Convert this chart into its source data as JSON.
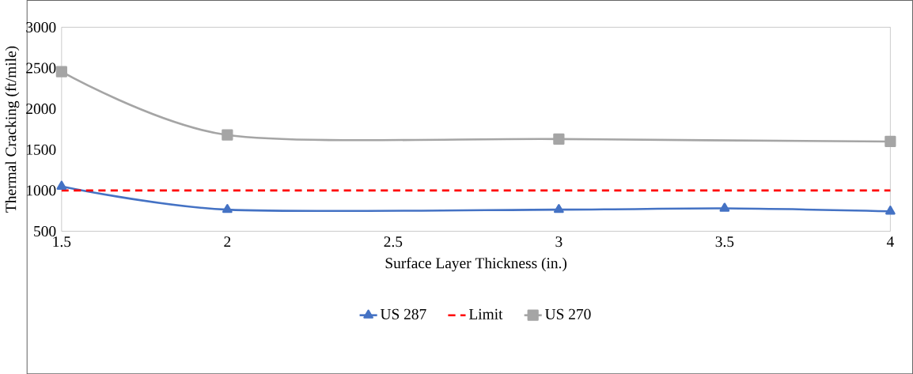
{
  "chart_data": {
    "type": "line",
    "xlabel": "Surface Layer Thickness (in.)",
    "ylabel": "Thermal Cracking (ft/mile)",
    "series": [
      {
        "name": "US 287",
        "color": "#4472c4",
        "marker": "triangle",
        "line_style": "solid",
        "x": [
          1.5,
          2,
          3,
          3.5,
          4
        ],
        "values": [
          1050,
          765,
          765,
          780,
          745
        ]
      },
      {
        "name": "Limit",
        "color": "#ff0000",
        "marker": "none",
        "line_style": "dashed",
        "x": [
          1.5,
          4
        ],
        "values": [
          1000,
          1000
        ]
      },
      {
        "name": "US 270",
        "color": "#a5a5a5",
        "marker": "square",
        "line_style": "solid",
        "x": [
          1.5,
          2,
          3,
          4
        ],
        "values": [
          2455,
          1680,
          1630,
          1600
        ]
      }
    ],
    "xlim": [
      1.5,
      4
    ],
    "ylim": [
      500,
      3000
    ],
    "xticks": [
      1.5,
      2,
      2.5,
      3,
      3.5,
      4
    ],
    "yticks": [
      500,
      1000,
      1500,
      2000,
      2500,
      3000
    ],
    "grid": false,
    "legend": "bottom"
  }
}
